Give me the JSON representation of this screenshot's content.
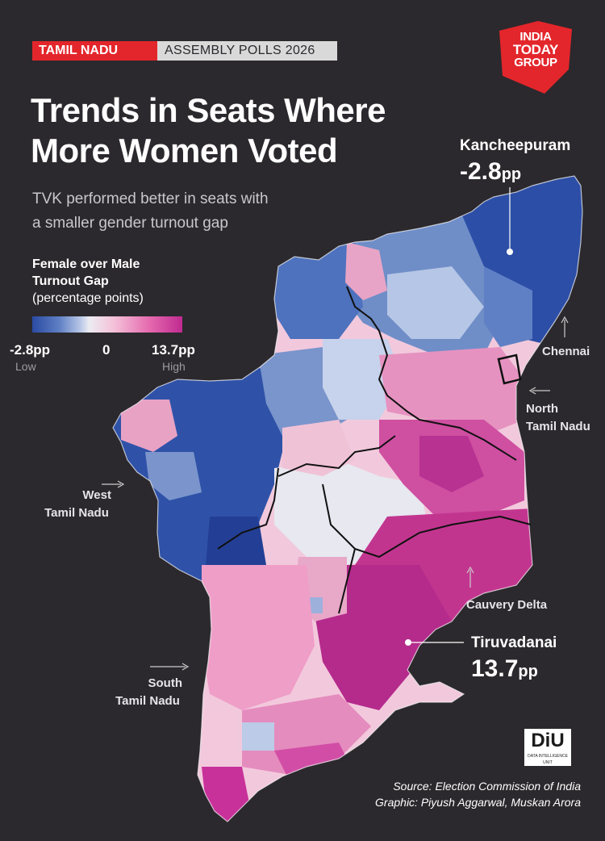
{
  "tags": {
    "state": "TAMIL NADU",
    "event": "ASSEMBLY POLLS 2026"
  },
  "logo": {
    "line1": "INDIA",
    "line2": "TODAY",
    "line3": "GROUP"
  },
  "title": {
    "line1": "Trends in Seats Where",
    "line2": "More Women Voted"
  },
  "subtitle": {
    "line1": "TVK performed better in seats with",
    "line2": "a smaller gender turnout gap"
  },
  "legend": {
    "title_line1": "Female over Male",
    "title_line2": "Turnout Gap",
    "title_line3": "(percentage points)",
    "min_label": "-2.8pp",
    "mid_label": "0",
    "max_label": "13.7pp",
    "low_label": "Low",
    "high_label": "High",
    "low_color": "#2a4aa3",
    "mid_color": "#ececf2",
    "high_color": "#c02a90"
  },
  "regions": {
    "chennai": "Chennai",
    "north_line1": "North",
    "north_line2": "Tamil Nadu",
    "west_line1": "West",
    "west_line2": "Tamil Nadu",
    "delta": "Cauvery Delta",
    "south_line1": "South",
    "south_line2": "Tamil Nadu"
  },
  "callouts": {
    "min_name": "Kancheepuram",
    "min_value": "-2.8",
    "min_unit": "pp",
    "max_name": "Tiruvadanai",
    "max_value": "13.7",
    "max_unit": "pp"
  },
  "diu": {
    "brand": "DiU",
    "sub": "DATA INTELLIGENCE UNIT"
  },
  "source": {
    "line1": "Source: Election Commission of India",
    "line2": "Graphic: Piyush Aggarwal, Muskan Arora"
  }
}
